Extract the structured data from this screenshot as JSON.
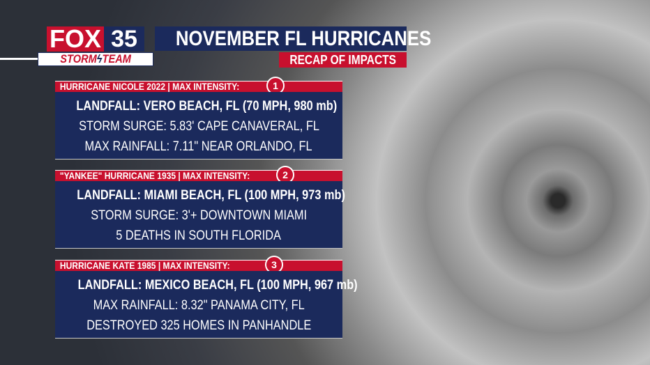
{
  "logo": {
    "brand": "FOX",
    "station": "35",
    "team_left": "STORM",
    "team_right": "TEAM"
  },
  "header": {
    "title": "NOVEMBER FL HURRICANES",
    "subtitle": "RECAP OF IMPACTS"
  },
  "cards": [
    {
      "heading": "HURRICANE NICOLE 2022 | MAX INTENSITY:",
      "category": 1,
      "lines": [
        "LANDFALL: VERO BEACH, FL (70 MPH, 980 mb)",
        "STORM SURGE: 5.83' CAPE CANAVERAL, FL",
        "MAX RAINFALL: 7.11\" NEAR ORLANDO, FL"
      ]
    },
    {
      "heading": "\"YANKEE\" HURRICANE 1935 | MAX INTENSITY:",
      "category": 2,
      "lines": [
        "LANDFALL: MIAMI BEACH, FL (100 MPH, 973 mb)",
        "STORM SURGE: 3'+ DOWNTOWN MIAMI",
        "5 DEATHS IN SOUTH FLORIDA"
      ]
    },
    {
      "heading": "HURRICANE KATE 1985 | MAX INTENSITY:",
      "category": 3,
      "lines": [
        "LANDFALL: MEXICO BEACH, FL (100 MPH, 967 mb)",
        "MAX RAINFALL: 8.32\" PANAMA CITY, FL",
        "DESTROYED 325 HOMES IN PANHANDLE"
      ]
    }
  ]
}
